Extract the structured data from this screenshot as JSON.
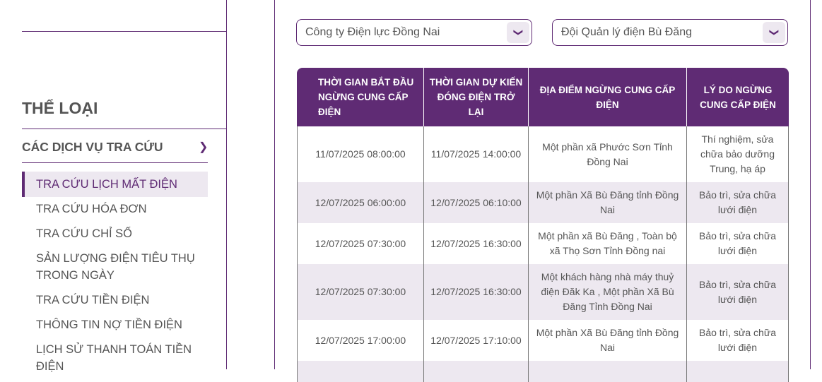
{
  "sidebar": {
    "category_title": "THỂ LOẠI",
    "group_title": "CÁC DỊCH VỤ TRA CỨU",
    "items": [
      {
        "label": "TRA CỨU LỊCH MẤT ĐIỆN",
        "active": true
      },
      {
        "label": "TRA CỨU HÓA ĐƠN"
      },
      {
        "label": "TRA CỨU CHỈ SỐ"
      },
      {
        "label": "SẢN LƯỢNG ĐIỆN TIÊU THỤ TRONG NGÀY"
      },
      {
        "label": "TRA CỨU TIỀN ĐIỆN"
      },
      {
        "label": "THÔNG TIN NỢ TIỀN ĐIỆN"
      },
      {
        "label": "LỊCH SỬ THANH TOÁN TIỀN ĐIỆN"
      }
    ]
  },
  "filters": {
    "company": "Công ty Điện lực Đồng Nai",
    "team": "Đội Quản lý điện Bù Đăng"
  },
  "table": {
    "headers": [
      "THỜI GIAN BẮT ĐẦU NGỪNG CUNG CẤP ĐIỆN",
      "THỜI GIAN DỰ KIẾN ĐÓNG ĐIỆN TRỞ LẠI",
      "ĐỊA ĐIỂM NGỪNG CUNG CẤP ĐIỆN",
      "LÝ DO NGỪNG CUNG CẤP ĐIỆN"
    ],
    "rows": [
      [
        "11/07/2025 08:00:00",
        "11/07/2025 14:00:00",
        "Một phần xã Phước Sơn Tỉnh Đồng Nai",
        "Thí nghiệm, sửa chữa bảo dưỡng Trung, hạ áp"
      ],
      [
        "12/07/2025 06:00:00",
        "12/07/2025 06:10:00",
        "Một phần Xã Bù Đăng tỉnh Đồng Nai",
        "Bảo trì, sửa chữa lưới điện"
      ],
      [
        "12/07/2025 07:30:00",
        "12/07/2025 16:30:00",
        "Một phần xã Bù Đăng , Toàn bộ xã Thọ Sơn Tỉnh Đồng nai",
        "Bảo trì, sửa chữa lưới điện"
      ],
      [
        "12/07/2025 07:30:00",
        "12/07/2025 16:30:00",
        "Một khách hàng nhà máy thuỷ điện Đăk Ka , Một phần Xã Bù Đăng Tỉnh Đồng Nai",
        "Bảo trì, sửa chữa lưới điện"
      ],
      [
        "12/07/2025 17:00:00",
        "12/07/2025 17:10:00",
        "Một phần Xã Bù Đăng tỉnh Đồng Nai",
        "Bảo trì, sửa chữa lưới điện"
      ]
    ]
  },
  "colors": {
    "brand": "#5f2b74",
    "row_alt": "#ede8f0"
  }
}
